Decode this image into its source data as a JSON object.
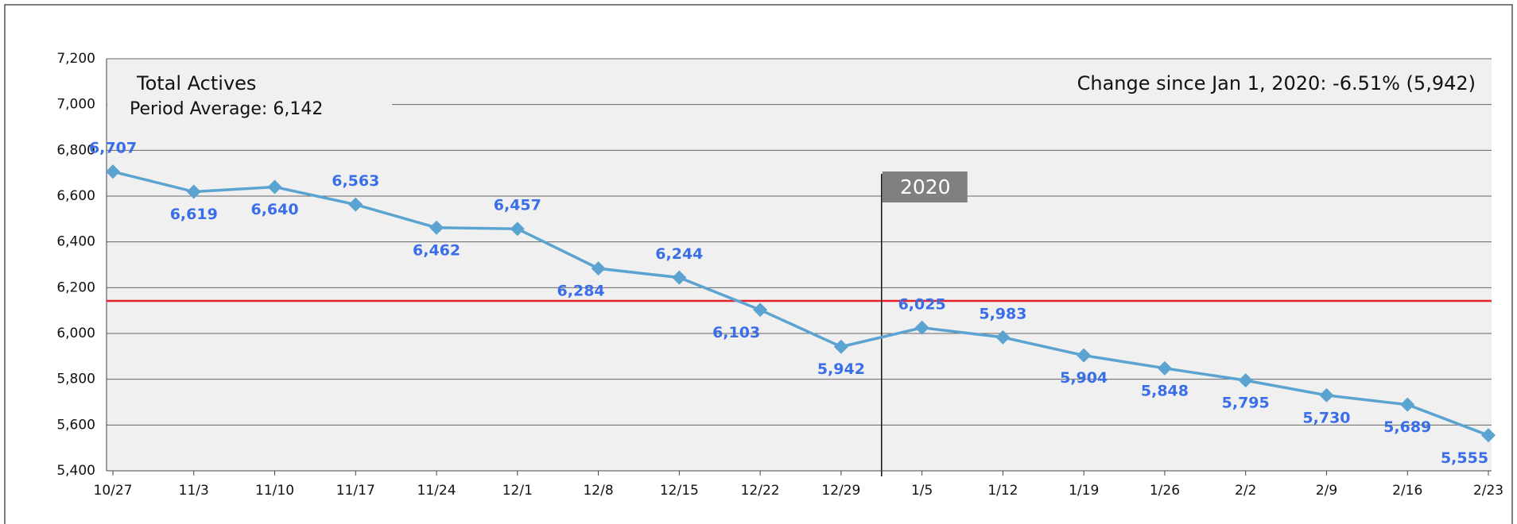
{
  "chart_data": {
    "type": "line",
    "title": "Total Actives",
    "subtitle": "Period Average: 6,142",
    "annotation": "Change since Jan 1, 2020: -6.51% (5,942)",
    "marker_label": "2020",
    "average": 6142,
    "average_color": "#e8202a",
    "categories": [
      "10/27",
      "11/3",
      "11/10",
      "11/17",
      "11/24",
      "12/1",
      "12/8",
      "12/15",
      "12/22",
      "12/29",
      "1/5",
      "1/12",
      "1/19",
      "1/26",
      "2/2",
      "2/9",
      "2/16",
      "2/23"
    ],
    "series": [
      {
        "name": "Total Actives",
        "color": "#5ba3d0",
        "values": [
          6707,
          6619,
          6640,
          6563,
          6462,
          6457,
          6284,
          6244,
          6103,
          5942,
          6025,
          5983,
          5904,
          5848,
          5795,
          5730,
          5689,
          5555
        ],
        "value_labels": [
          "6,707",
          "6,619",
          "6,640",
          "6,563",
          "6,462",
          "6,457",
          "6,284",
          "6,244",
          "6,103",
          "5,942",
          "6,025",
          "5,983",
          "5,904",
          "5,848",
          "5,795",
          "5,730",
          "5,689",
          "5,555"
        ]
      }
    ],
    "ylim": [
      5400,
      7200
    ],
    "yticks": [
      {
        "value": 5400,
        "label": "5,400"
      },
      {
        "value": 5600,
        "label": "5,600"
      },
      {
        "value": 5800,
        "label": "5,800"
      },
      {
        "value": 6000,
        "label": "6,000"
      },
      {
        "value": 6200,
        "label": "6,200"
      },
      {
        "value": 6400,
        "label": "6,400"
      },
      {
        "value": 6600,
        "label": "6,600"
      },
      {
        "value": 6800,
        "label": "6,800"
      },
      {
        "value": 7000,
        "label": "7,000"
      },
      {
        "value": 7200,
        "label": "7,200"
      }
    ],
    "grid": true
  }
}
